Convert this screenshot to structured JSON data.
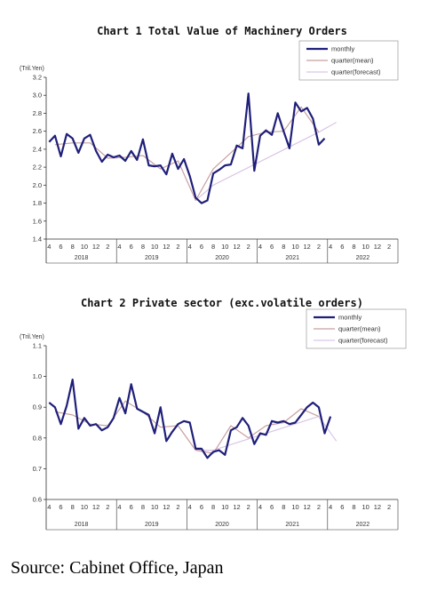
{
  "colors": {
    "monthly": "#1f1f7a",
    "mean": "#c8a0a0",
    "forecast": "#d9c6e6",
    "axis": "#333333"
  },
  "source": "Source: Cabinet Office, Japan",
  "chart_data": [
    {
      "type": "line",
      "title": "Chart 1 Total Value of Machinery Orders",
      "unit": "(Tril.Yen)",
      "ylim": [
        1.4,
        3.2
      ],
      "yticks": [
        "1.4",
        "1.6",
        "1.8",
        "2.0",
        "2.2",
        "2.4",
        "2.6",
        "2.8",
        "3.0",
        "3.2"
      ],
      "ytick_values": [
        1.4,
        1.6,
        1.8,
        2.0,
        2.2,
        2.4,
        2.6,
        2.8,
        3.0,
        3.2
      ],
      "month_labels": [
        "4",
        "6",
        "8",
        "10",
        "12",
        "2",
        "4",
        "6",
        "8",
        "10",
        "12",
        "2",
        "4",
        "6",
        "8",
        "10",
        "12",
        "2",
        "4",
        "6",
        "8",
        "10",
        "12",
        "2",
        "4",
        "6",
        "8",
        "10",
        "12",
        "2"
      ],
      "years": [
        "2018",
        "2019",
        "2020",
        "2021",
        "2022"
      ],
      "legend": [
        "monthly",
        "quarter(mean)",
        "quarter(forecast)"
      ],
      "series": [
        {
          "name": "monthly",
          "values": [
            2.48,
            2.55,
            2.32,
            2.57,
            2.52,
            2.36,
            2.52,
            2.56,
            2.38,
            2.26,
            2.34,
            2.31,
            2.33,
            2.27,
            2.38,
            2.28,
            2.51,
            2.22,
            2.21,
            2.22,
            2.12,
            2.35,
            2.18,
            2.29,
            2.1,
            1.86,
            1.8,
            1.83,
            2.13,
            2.17,
            2.22,
            2.23,
            2.44,
            2.41,
            3.02,
            2.16,
            2.55,
            2.61,
            2.56,
            2.8,
            2.6,
            2.41,
            2.92,
            2.82,
            2.86,
            2.74,
            2.45,
            2.52
          ]
        },
        {
          "name": "quarter(mean)",
          "values": [
            null,
            2.45,
            null,
            null,
            2.47,
            null,
            null,
            2.47,
            null,
            null,
            2.3,
            null,
            null,
            2.31,
            null,
            null,
            2.33,
            null,
            null,
            2.18,
            null,
            null,
            2.27,
            null,
            null,
            1.83,
            null,
            null,
            2.18,
            null,
            null,
            2.36,
            null,
            null,
            2.54,
            null,
            null,
            2.59,
            null,
            null,
            2.6,
            null,
            null,
            2.87,
            null,
            null,
            2.59,
            null
          ]
        },
        {
          "name": "quarter(forecast)",
          "values": [
            null,
            null,
            null,
            null,
            null,
            null,
            null,
            null,
            null,
            null,
            null,
            null,
            null,
            null,
            null,
            null,
            null,
            null,
            null,
            null,
            null,
            null,
            null,
            null,
            null,
            1.83,
            null,
            null,
            2.0,
            null,
            null,
            null,
            null,
            null,
            null,
            null,
            null,
            null,
            null,
            null,
            null,
            null,
            null,
            null,
            null,
            null,
            2.59,
            null,
            null,
            2.7
          ]
        }
      ]
    },
    {
      "type": "line",
      "title": "Chart 2 Private sector (exc.volatile orders)",
      "unit": "(Tril.Yen)",
      "ylim": [
        0.6,
        1.1
      ],
      "yticks": [
        "0.6",
        "0.7",
        "0.8",
        "0.9",
        "1.0",
        "1.1"
      ],
      "ytick_values": [
        0.6,
        0.7,
        0.8,
        0.9,
        1.0,
        1.1
      ],
      "month_labels": [
        "4",
        "6",
        "8",
        "10",
        "12",
        "2",
        "4",
        "6",
        "8",
        "10",
        "12",
        "2",
        "4",
        "6",
        "8",
        "10",
        "12",
        "2",
        "4",
        "6",
        "8",
        "10",
        "12",
        "2",
        "4",
        "6",
        "8",
        "10",
        "12",
        "2"
      ],
      "years": [
        "2018",
        "2019",
        "2020",
        "2021",
        "2022"
      ],
      "legend": [
        "monthly",
        "quarter(mean)",
        "quarter(forecast)"
      ],
      "series": [
        {
          "name": "monthly",
          "values": [
            0.915,
            0.9,
            0.845,
            0.905,
            0.99,
            0.83,
            0.865,
            0.84,
            0.845,
            0.825,
            0.835,
            0.865,
            0.93,
            0.88,
            0.975,
            0.895,
            0.885,
            0.875,
            0.815,
            0.9,
            0.79,
            0.82,
            0.845,
            0.855,
            0.85,
            0.765,
            0.765,
            0.735,
            0.755,
            0.76,
            0.745,
            0.825,
            0.835,
            0.865,
            0.84,
            0.78,
            0.815,
            0.81,
            0.855,
            0.85,
            0.855,
            0.845,
            0.85,
            0.875,
            0.9,
            0.915,
            0.9,
            0.815,
            0.87
          ]
        },
        {
          "name": "quarter(mean)",
          "values": [
            null,
            0.885,
            null,
            null,
            0.875,
            null,
            null,
            0.845,
            null,
            null,
            0.84,
            null,
            null,
            0.92,
            null,
            null,
            0.885,
            null,
            null,
            0.835,
            null,
            null,
            0.84,
            null,
            null,
            0.76,
            null,
            null,
            0.75,
            null,
            null,
            0.84,
            null,
            null,
            0.8,
            null,
            null,
            0.84,
            null,
            null,
            0.85,
            null,
            null,
            0.895,
            null,
            null,
            0.87,
            null,
            null
          ]
        },
        {
          "name": "quarter(forecast)",
          "values": [
            null,
            null,
            null,
            null,
            null,
            null,
            null,
            null,
            null,
            null,
            null,
            null,
            null,
            null,
            null,
            null,
            null,
            null,
            null,
            null,
            null,
            null,
            null,
            null,
            null,
            0.76,
            null,
            null,
            0.76,
            null,
            null,
            null,
            null,
            null,
            null,
            null,
            null,
            null,
            null,
            null,
            null,
            null,
            null,
            null,
            null,
            null,
            0.87,
            null,
            null,
            0.79
          ]
        }
      ]
    }
  ]
}
